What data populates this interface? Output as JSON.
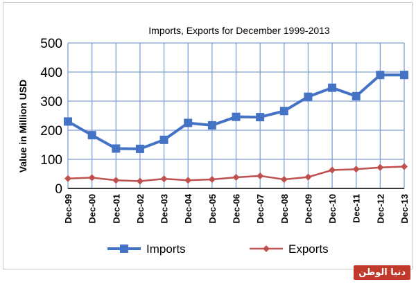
{
  "chart_data": {
    "type": "line",
    "title": "Imports, Exports for December 1999-2013",
    "xlabel": "",
    "ylabel": "Value  in  Million USD",
    "categories": [
      "Dec-99",
      "Dec-00",
      "Dec-01",
      "Dec-02",
      "Dec-03",
      "Dec-04",
      "Dec-05",
      "Dec-06",
      "Dec-07",
      "Dec-08",
      "Dec-09",
      "Dec-10",
      "Dec-11",
      "Dec-12",
      "Dec-13"
    ],
    "ylim": [
      0,
      500
    ],
    "yticks": [
      "0",
      "100",
      "200",
      "300",
      "400",
      "500"
    ],
    "grid": true,
    "legend_position": "bottom",
    "series": [
      {
        "name": "Imports",
        "color": "#4472c4",
        "marker": "square",
        "values": [
          230,
          183,
          137,
          136,
          167,
          225,
          217,
          246,
          245,
          266,
          315,
          346,
          317,
          390,
          390
        ]
      },
      {
        "name": "Exports",
        "color": "#c0504d",
        "marker": "diamond",
        "values": [
          34,
          37,
          28,
          25,
          33,
          28,
          31,
          38,
          43,
          31,
          39,
          63,
          66,
          72,
          75
        ]
      }
    ]
  },
  "watermark": {
    "text": "دنيا الوطن",
    "color": "#c0392b"
  }
}
